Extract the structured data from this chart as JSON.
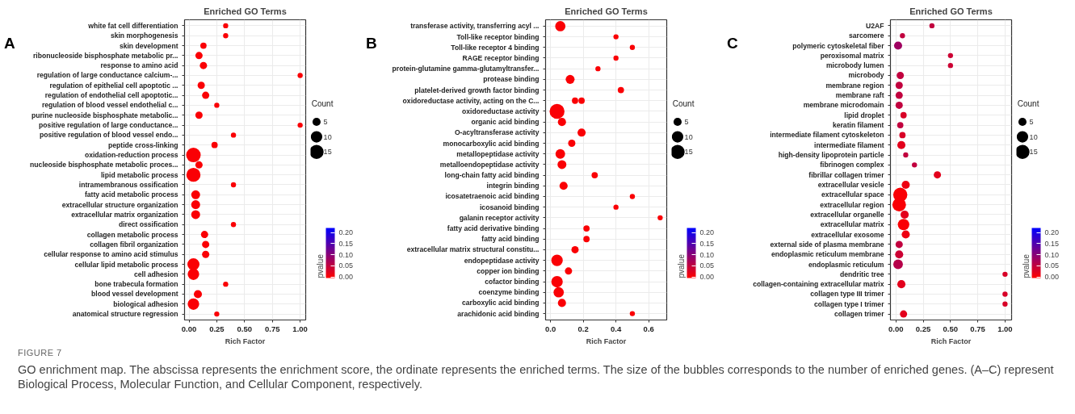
{
  "chart_data": [
    {
      "type": "bubble",
      "title": "Enriched GO Terms",
      "xlabel": "Rich Factor",
      "legend_title": "Count",
      "clabel": "pvalue",
      "orientation": "horizontal",
      "grid": true,
      "annotations": [
        "A",
        "FIGURE 7",
        "GO enrichment map. The abscissa represents the enrichment score, the ordinate represents the enriched terms. The size of the bubbles corresponds to the number of enriched genes. (A–C) represent Biological Process, Molecular Function, and Cellular Component, respectively."
      ],
      "categories": [
        "white fat cell differentiation",
        "skin morphogenesis",
        "skin development",
        "ribonucleoside bisphosphate metabolic pr...",
        "response to amino acid",
        "regulation of large conductance calcium-...",
        "regulation of epithelial cell apoptotic ...",
        "regulation of endothelial cell apoptotic...",
        "regulation of blood vessel endothelial c...",
        "purine nucleoside bisphosphate metabolic...",
        "positive regulation of large conductance...",
        "positive regulation of blood vessel endo...",
        "peptide cross-linking",
        "oxidation-reduction process",
        "nucleoside bisphosphate metabolic proces...",
        "lipid metabolic process",
        "intramembranous ossification",
        "fatty acid metabolic process",
        "extracellular structure organization",
        "extracellular matrix organization",
        "direct ossification",
        "collagen metabolic process",
        "collagen fibril organization",
        "cellular response to amino acid stimulus",
        "cellular lipid metabolic process",
        "cell adhesion",
        "bone trabecula formation",
        "blood vessel development",
        "biological adhesion",
        "anatomical structure regression"
      ],
      "series": [
        {
          "values": [
            0.33,
            0.33,
            0.13,
            0.09,
            0.13,
            1.0,
            0.11,
            0.15,
            0.25,
            0.09,
            1.0,
            0.4,
            0.23,
            0.04,
            0.09,
            0.04,
            0.4,
            0.06,
            0.06,
            0.06,
            0.4,
            0.14,
            0.15,
            0.15,
            0.04,
            0.04,
            0.33,
            0.08,
            0.04,
            0.25
          ],
          "sizes": [
            2,
            2,
            3,
            4,
            4,
            2,
            4,
            4,
            2,
            4,
            2,
            2,
            3,
            16,
            4,
            15,
            2,
            6,
            6,
            6,
            2,
            4,
            4,
            4,
            11,
            10,
            2,
            5,
            10,
            2
          ],
          "cvalues": [
            0.0,
            0.0,
            0.0,
            0.0,
            0.0,
            0.0,
            0.0,
            0.0,
            0.0,
            0.0,
            0.0,
            0.0,
            0.0,
            0.0,
            0.0,
            0.0,
            0.0,
            0.0,
            0.0,
            0.0,
            0.0,
            0.0,
            0.0,
            0.0,
            0.0,
            0.0,
            0.0,
            0.0,
            0.0,
            0.0
          ]
        }
      ],
      "size_legend": [
        5,
        10,
        15
      ],
      "xlim": [
        -0.04,
        1.05
      ],
      "xticks": [
        {
          "value": 0,
          "label": "0.00"
        },
        {
          "value": 0.25,
          "label": "0.25"
        },
        {
          "value": 0.5,
          "label": "0.50"
        },
        {
          "value": 0.75,
          "label": "0.75"
        },
        {
          "value": 1,
          "label": "1.00"
        }
      ],
      "clim": [
        -0.005,
        0.22
      ],
      "cticks": [
        {
          "value": 0,
          "label": "0.00"
        },
        {
          "value": 0.05,
          "label": "0.05"
        },
        {
          "value": 0.1,
          "label": "0.10"
        },
        {
          "value": 0.15,
          "label": "0.15"
        },
        {
          "value": 0.2,
          "label": "0.20"
        }
      ]
    },
    {
      "type": "bubble",
      "title": "Enriched GO Terms",
      "xlabel": "Rich Factor",
      "legend_title": "Count",
      "clabel": "pvalue",
      "orientation": "horizontal",
      "grid": true,
      "annotations": [
        "B"
      ],
      "categories": [
        "transferase activity, transferring acyl ...",
        "Toll-like receptor binding",
        "Toll-like receptor 4 binding",
        "RAGE receptor binding",
        "protein-glutamine gamma-glutamyltransfer...",
        "protease binding",
        "platelet-derived growth factor binding",
        "oxidoreductase activity, acting on the C...",
        "oxidoreductase activity",
        "organic acid binding",
        "O-acyltransferase activity",
        "monocarboxylic acid binding",
        "metallopeptidase activity",
        "metalloendopeptidase activity",
        "long-chain fatty acid binding",
        "integrin binding",
        "icosatetraenoic acid binding",
        "icosanoid binding",
        "galanin receptor activity",
        "fatty acid derivative binding",
        "fatty acid binding",
        "extracellular matrix structural constitu...",
        "endopeptidase activity",
        "copper ion binding",
        "cofactor binding",
        "coenzyme binding",
        "carboxylic acid binding",
        "arachidonic acid binding"
      ],
      "series": [
        {
          "values": [
            0.06,
            0.4,
            0.5,
            0.4,
            0.29,
            0.12,
            0.43,
            0.15,
            0.04,
            0.07,
            0.19,
            0.13,
            0.06,
            0.07,
            0.27,
            0.08,
            0.5,
            0.4,
            0.67,
            0.22,
            0.22,
            0.15,
            0.04,
            0.11,
            0.04,
            0.05,
            0.07,
            0.5
          ],
          "sizes": [
            8,
            2,
            2,
            2,
            2,
            6,
            3,
            3,
            17,
            5,
            5,
            4,
            7,
            6,
            3,
            5,
            2,
            2,
            2,
            3,
            3,
            4,
            10,
            4,
            10,
            8,
            5,
            2
          ],
          "cvalues": [
            0.0,
            0.0,
            0.0,
            0.0,
            0.0,
            0.0,
            0.0,
            0.0,
            0.0,
            0.0,
            0.0,
            0.0,
            0.0,
            0.0,
            0.0,
            0.0,
            0.0,
            0.0,
            0.0,
            0.0,
            0.0,
            0.0,
            0.0,
            0.0,
            0.0,
            0.0,
            0.0,
            0.0
          ]
        },
        {
          "values": [
            null,
            null,
            null,
            null,
            null,
            null,
            null,
            0.19,
            null,
            null,
            null,
            null,
            null,
            null,
            null,
            null,
            null,
            null,
            null,
            null,
            null,
            null,
            null,
            null,
            null,
            null,
            null,
            null
          ],
          "sizes": [
            null,
            null,
            null,
            null,
            null,
            null,
            null,
            3,
            null,
            null,
            null,
            null,
            null,
            null,
            null,
            null,
            null,
            null,
            null,
            null,
            null,
            null,
            null,
            null,
            null,
            null,
            null,
            null
          ],
          "cvalues": [
            null,
            null,
            null,
            null,
            null,
            null,
            null,
            0.0,
            null,
            null,
            null,
            null,
            null,
            null,
            null,
            null,
            null,
            null,
            null,
            null,
            null,
            null,
            null,
            null,
            null,
            null,
            null,
            null
          ]
        }
      ],
      "size_legend": [
        5,
        10,
        15
      ],
      "xlim": [
        -0.03,
        0.71
      ],
      "xticks": [
        {
          "value": 0,
          "label": "0.0"
        },
        {
          "value": 0.2,
          "label": "0.2"
        },
        {
          "value": 0.4,
          "label": "0.4"
        },
        {
          "value": 0.6,
          "label": "0.6"
        }
      ],
      "clim": [
        -0.005,
        0.22
      ],
      "cticks": [
        {
          "value": 0,
          "label": "0.00"
        },
        {
          "value": 0.05,
          "label": "0.05"
        },
        {
          "value": 0.1,
          "label": "0.10"
        },
        {
          "value": 0.15,
          "label": "0.15"
        },
        {
          "value": 0.2,
          "label": "0.20"
        }
      ]
    },
    {
      "type": "bubble",
      "title": "Enriched GO Terms",
      "xlabel": "Rich Factor",
      "legend_title": "Count",
      "clabel": "pvalue",
      "orientation": "horizontal",
      "grid": true,
      "annotations": [
        "C"
      ],
      "categories": [
        "U2AF",
        "sarcomere",
        "polymeric cytoskeletal fiber",
        "peroxisomal matrix",
        "microbody lumen",
        "microbody",
        "membrane region",
        "membrane raft",
        "membrane microdomain",
        "lipid droplet",
        "keratin filament",
        "intermediate filament cytoskeleton",
        "intermediate filament",
        "high-density lipoprotein particle",
        "fibrinogen complex",
        "fibrillar collagen trimer",
        "extracellular vesicle",
        "extracellular space",
        "extracellular region",
        "extracellular organelle",
        "extracellular matrix",
        "extracellular exosome",
        "external side of plasma membrane",
        "endoplasmic reticulum membrane",
        "endoplasmic reticulum",
        "dendritic tree",
        "collagen-containing extracellular matrix",
        "collagen type III trimer",
        "collagen type I trimer",
        "collagen trimer"
      ],
      "series": [
        {
          "values": [
            0.33,
            0.06,
            0.02,
            0.5,
            0.5,
            0.04,
            0.03,
            0.03,
            0.03,
            0.07,
            0.04,
            0.06,
            0.05,
            0.09,
            0.17,
            0.38,
            0.09,
            0.04,
            0.03,
            0.08,
            0.07,
            0.09,
            0.03,
            0.03,
            0.02,
            1.0,
            0.05,
            1.0,
            1.0,
            0.07
          ],
          "sizes": [
            2,
            2,
            5,
            2,
            2,
            4,
            4,
            4,
            4,
            3,
            3,
            3,
            5,
            2,
            2,
            4,
            5,
            15,
            14,
            5,
            10,
            5,
            4,
            5,
            7,
            2,
            5,
            2,
            2,
            4
          ],
          "cvalues": [
            0.05,
            0.05,
            0.08,
            0.04,
            0.04,
            0.05,
            0.05,
            0.05,
            0.05,
            0.03,
            0.05,
            0.03,
            0.02,
            0.05,
            0.05,
            0.02,
            0.01,
            0.0,
            0.0,
            0.02,
            0.0,
            0.01,
            0.05,
            0.04,
            0.06,
            0.03,
            0.02,
            0.03,
            0.03,
            0.02
          ]
        }
      ],
      "size_legend": [
        5,
        10,
        15
      ],
      "xlim": [
        -0.05,
        1.06
      ],
      "xticks": [
        {
          "value": 0,
          "label": "0.00"
        },
        {
          "value": 0.25,
          "label": "0.25"
        },
        {
          "value": 0.5,
          "label": "0.50"
        },
        {
          "value": 0.75,
          "label": "0.75"
        },
        {
          "value": 1,
          "label": "1.00"
        }
      ],
      "clim": [
        -0.005,
        0.22
      ],
      "cticks": [
        {
          "value": 0,
          "label": "0.00"
        },
        {
          "value": 0.05,
          "label": "0.05"
        },
        {
          "value": 0.1,
          "label": "0.10"
        },
        {
          "value": 0.15,
          "label": "0.15"
        },
        {
          "value": 0.2,
          "label": "0.20"
        }
      ]
    }
  ]
}
